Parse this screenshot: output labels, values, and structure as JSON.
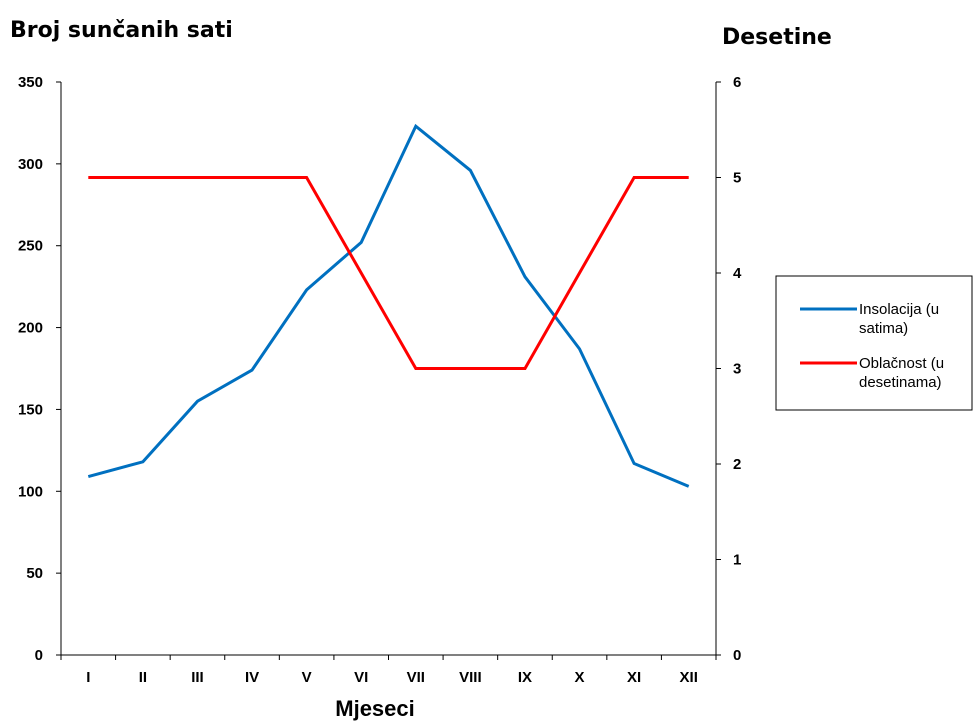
{
  "chart_data": {
    "type": "line",
    "ylabel_left": "Broj sunčanih sati",
    "ylabel_right": "Desetine",
    "xlabel": "Mjeseci",
    "categories": [
      "I",
      "II",
      "III",
      "IV",
      "V",
      "VI",
      "VII",
      "VIII",
      "IX",
      "X",
      "XI",
      "XII"
    ],
    "y_left_range": [
      0,
      350
    ],
    "y_left_ticks": [
      "0",
      "50",
      "100",
      "150",
      "200",
      "250",
      "300",
      "350"
    ],
    "y_right_range": [
      0,
      6
    ],
    "y_right_ticks": [
      "0",
      "1",
      "2",
      "3",
      "4",
      "5",
      "6"
    ],
    "grid": false,
    "legend_position": "right",
    "series": [
      {
        "name_line1": "Insolacija (u",
        "name_line2": "satima)",
        "axis": "left",
        "color": "#0070c0",
        "values": [
          109,
          118,
          155,
          174,
          223,
          252,
          323,
          296,
          231,
          187,
          117,
          103
        ]
      },
      {
        "name_line1": "Oblačnost (u",
        "name_line2": "desetinama)",
        "axis": "right",
        "color": "#ff0000",
        "values": [
          5,
          5,
          5,
          5,
          5,
          4,
          3,
          3,
          3,
          4,
          5,
          5
        ]
      }
    ]
  }
}
